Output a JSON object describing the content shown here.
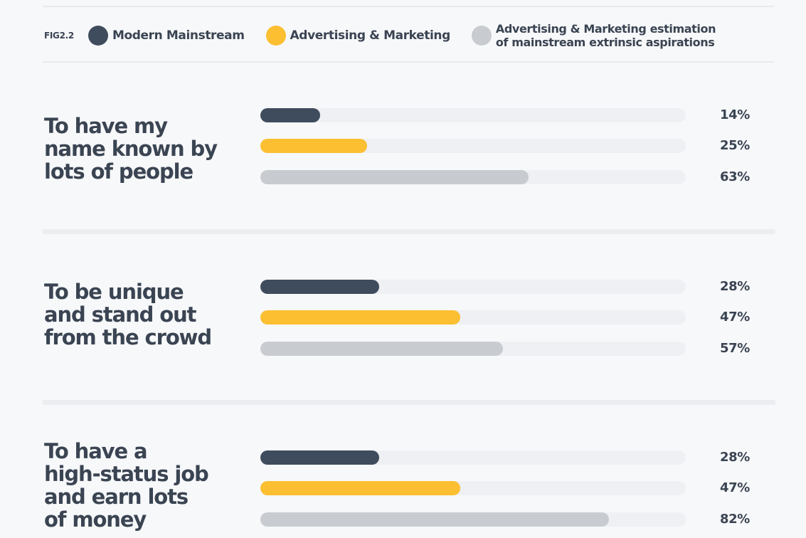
{
  "legend": {
    "fig_label": "FIG2.2",
    "items": [
      {
        "label": "Modern Mainstream",
        "color": "#3f4c5d"
      },
      {
        "label": "Advertising & Marketing",
        "color": "#fbbf31"
      },
      {
        "label_line1": "Advertising & Marketing estimation",
        "label_line2": "of mainstream extrinsic aspirations",
        "color": "#c8cbd0"
      }
    ]
  },
  "chart_data": {
    "type": "bar",
    "orientation": "horizontal",
    "xlim": [
      0,
      100
    ],
    "categories": [
      "To have my name known by lots of people",
      "To be unique and stand out from the crowd",
      "To have a high-status job and earn lots of money"
    ],
    "series": [
      {
        "name": "Modern Mainstream",
        "color": "#3f4c5d",
        "values": [
          14,
          28,
          28
        ],
        "labels": [
          "14%",
          "28%",
          "28%"
        ]
      },
      {
        "name": "Advertising & Marketing",
        "color": "#fbbf31",
        "values": [
          25,
          47,
          47
        ],
        "labels": [
          "25%",
          "47%",
          "47%"
        ]
      },
      {
        "name": "Advertising & Marketing estimation of mainstream extrinsic aspirations",
        "color": "#c8cbd0",
        "values": [
          63,
          57,
          82
        ],
        "labels": [
          "63%",
          "57%",
          "82%"
        ]
      }
    ]
  },
  "groups": [
    {
      "title_lines": [
        "To have my",
        "name known by",
        "lots of people"
      ]
    },
    {
      "title_lines": [
        "To be unique",
        "and stand out",
        "from the crowd"
      ]
    },
    {
      "title_lines": [
        "To have a",
        "high-status job",
        "and earn lots",
        "of money"
      ]
    }
  ]
}
